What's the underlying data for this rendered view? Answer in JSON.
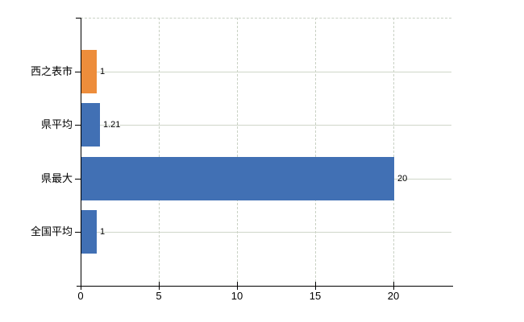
{
  "chart_data": {
    "type": "bar",
    "orientation": "horizontal",
    "title": "",
    "xlabel": "",
    "ylabel": "",
    "categories": [
      "西之表市",
      "県平均",
      "県最大",
      "全国平均"
    ],
    "values": [
      1,
      1.21,
      20,
      1
    ],
    "value_labels": [
      "1",
      "1.21",
      "20",
      "1"
    ],
    "bar_colors": [
      "#ed8d3b",
      "#4170b4",
      "#4170b4",
      "#4170b4"
    ],
    "x_ticks": [
      0,
      5,
      10,
      15,
      20
    ],
    "x_tick_labels": [
      "0",
      "5",
      "10",
      "15",
      "20"
    ],
    "xlim": [
      0,
      23.7
    ],
    "legend": "none",
    "grid": {
      "vertical": "dashed at each x tick",
      "horizontal": "solid at each category center",
      "top_border": "dashed"
    },
    "colors": {
      "background": "#ffffff",
      "axis": "#000000",
      "grid_solid": "#cfd6c9",
      "grid_dashed": "#c9d1c4",
      "label_text": "#000000"
    }
  }
}
